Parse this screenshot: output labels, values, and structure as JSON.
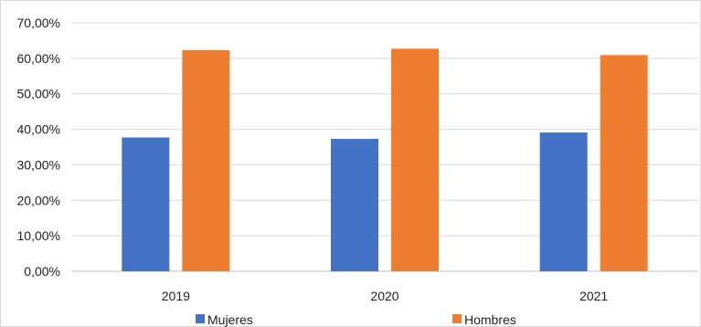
{
  "chart_data": {
    "type": "bar",
    "categories": [
      "2019",
      "2020",
      "2021"
    ],
    "series": [
      {
        "name": "Mujeres",
        "values": [
          37.7,
          37.3,
          39.1
        ],
        "color": "#4472C4"
      },
      {
        "name": "Hombres",
        "values": [
          62.3,
          62.7,
          60.9
        ],
        "color": "#ED7D31"
      }
    ],
    "ylim": [
      0,
      70
    ],
    "yticks": [
      0,
      10,
      20,
      30,
      40,
      50,
      60,
      70
    ],
    "ytick_labels": [
      "0,00%",
      "10,00%",
      "20,00%",
      "30,00%",
      "40,00%",
      "50,00%",
      "60,00%",
      "70,00%"
    ],
    "grid": true,
    "legend": "bottom"
  }
}
